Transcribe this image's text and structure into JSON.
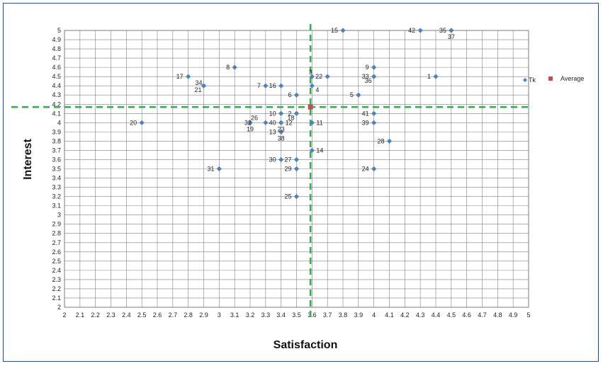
{
  "chart_data": {
    "type": "scatter",
    "xlabel": "Satisfaction",
    "ylabel": "Interest",
    "xlim": [
      2,
      5
    ],
    "ylim": [
      2,
      5
    ],
    "tick_step": 0.1,
    "grid": true,
    "legend": {
      "position": "right",
      "entries": [
        {
          "name": "Tk",
          "marker": "diamond",
          "color": "#4f81bd"
        },
        {
          "name": "Average",
          "marker": "square",
          "color": "#c0504d"
        }
      ]
    },
    "average": {
      "x": 3.59,
      "y": 4.17
    },
    "colors": {
      "points": "#4f81bd",
      "average": "#c0504d",
      "average_lines": "#2db34a",
      "grid": "#808080"
    },
    "x_ticks": [
      "2",
      "2.1",
      "2.2",
      "2.3",
      "2.4",
      "2.5",
      "2.6",
      "2.7",
      "2.8",
      "2.9",
      "3",
      "3.1",
      "3.2",
      "3.3",
      "3.4",
      "3.5",
      "3.6",
      "3.7",
      "3.8",
      "3.9",
      "4",
      "4.1",
      "4.2",
      "4.3",
      "4.4",
      "4.5",
      "4.6",
      "4.7",
      "4.8",
      "4.9",
      "5"
    ],
    "y_ticks": [
      "2",
      "2.1",
      "2.2",
      "2.3",
      "2.4",
      "2.5",
      "2.6",
      "2.7",
      "2.8",
      "2.9",
      "3",
      "3.1",
      "3.2",
      "3.3",
      "3.4",
      "3.5",
      "3.6",
      "3.7",
      "3.8",
      "3.9",
      "4",
      "4.1",
      "4.2",
      "4.3",
      "4.4",
      "4.5",
      "4.6",
      "4.7",
      "4.8",
      "4.9",
      "5"
    ],
    "points": [
      {
        "label": "1",
        "x": 4.4,
        "y": 4.5,
        "pos": "left"
      },
      {
        "label": "2",
        "x": 3.5,
        "y": 4.1,
        "pos": "left"
      },
      {
        "label": "3",
        "x": 3.6,
        "y": 4.5,
        "pos": "above"
      },
      {
        "label": "4",
        "x": 3.6,
        "y": 4.4,
        "pos": "below-right"
      },
      {
        "label": "5",
        "x": 3.9,
        "y": 4.3,
        "pos": "left"
      },
      {
        "label": "6",
        "x": 3.5,
        "y": 4.3,
        "pos": "left"
      },
      {
        "label": "7",
        "x": 3.3,
        "y": 4.4,
        "pos": "left"
      },
      {
        "label": "8",
        "x": 3.1,
        "y": 4.6,
        "pos": "left"
      },
      {
        "label": "9",
        "x": 4.0,
        "y": 4.6,
        "pos": "left"
      },
      {
        "label": "10",
        "x": 3.4,
        "y": 4.1,
        "pos": "left"
      },
      {
        "label": "11",
        "x": 3.6,
        "y": 4.0,
        "pos": "right"
      },
      {
        "label": "12",
        "x": 3.4,
        "y": 4.0,
        "pos": "right"
      },
      {
        "label": "13",
        "x": 3.4,
        "y": 3.9,
        "pos": "left"
      },
      {
        "label": "14",
        "x": 3.6,
        "y": 3.7,
        "pos": "right"
      },
      {
        "label": "15",
        "x": 3.8,
        "y": 5.0,
        "pos": "left"
      },
      {
        "label": "16",
        "x": 3.4,
        "y": 4.4,
        "pos": "left"
      },
      {
        "label": "17",
        "x": 2.8,
        "y": 4.5,
        "pos": "left"
      },
      {
        "label": "18",
        "x": 3.5,
        "y": 4.1,
        "pos": "below-left"
      },
      {
        "label": "19",
        "x": 3.2,
        "y": 4.0,
        "pos": "below"
      },
      {
        "label": "20",
        "x": 2.5,
        "y": 4.0,
        "pos": "left"
      },
      {
        "label": "21",
        "x": 2.9,
        "y": 4.4,
        "pos": "below-left"
      },
      {
        "label": "22",
        "x": 3.7,
        "y": 4.5,
        "pos": "left"
      },
      {
        "label": "23",
        "x": 3.4,
        "y": 4.0,
        "pos": "below"
      },
      {
        "label": "24",
        "x": 4.0,
        "y": 3.5,
        "pos": "left"
      },
      {
        "label": "25",
        "x": 3.5,
        "y": 3.2,
        "pos": "left"
      },
      {
        "label": "26",
        "x": 3.2,
        "y": 4.0,
        "pos": "above-right"
      },
      {
        "label": "27",
        "x": 3.5,
        "y": 3.6,
        "pos": "left"
      },
      {
        "label": "28",
        "x": 4.1,
        "y": 3.8,
        "pos": "left"
      },
      {
        "label": "29",
        "x": 3.5,
        "y": 3.5,
        "pos": "left"
      },
      {
        "label": "30",
        "x": 3.4,
        "y": 3.6,
        "pos": "left"
      },
      {
        "label": "31",
        "x": 3.0,
        "y": 3.5,
        "pos": "left"
      },
      {
        "label": "32",
        "x": 3.3,
        "y": 4.0,
        "pos": "left-far"
      },
      {
        "label": "33",
        "x": 4.0,
        "y": 4.5,
        "pos": "left"
      },
      {
        "label": "34",
        "x": 2.9,
        "y": 4.4,
        "pos": "above-left"
      },
      {
        "label": "35",
        "x": 4.5,
        "y": 5.0,
        "pos": "left"
      },
      {
        "label": "36",
        "x": 4.0,
        "y": 4.5,
        "pos": "below-left"
      },
      {
        "label": "37",
        "x": 4.5,
        "y": 5.0,
        "pos": "below"
      },
      {
        "label": "38",
        "x": 3.4,
        "y": 3.9,
        "pos": "below"
      },
      {
        "label": "39",
        "x": 4.0,
        "y": 4.0,
        "pos": "left"
      },
      {
        "label": "40",
        "x": 3.4,
        "y": 4.0,
        "pos": "left"
      },
      {
        "label": "41",
        "x": 4.0,
        "y": 4.1,
        "pos": "left"
      },
      {
        "label": "42",
        "x": 4.3,
        "y": 5.0,
        "pos": "left"
      }
    ]
  }
}
